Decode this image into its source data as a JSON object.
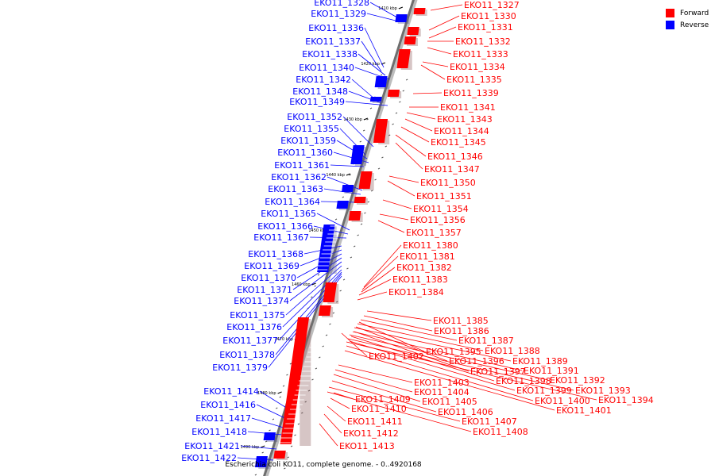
{
  "legend": {
    "forward": {
      "label": "Forward",
      "color": "#ff0000"
    },
    "reverse": {
      "label": "Reverse",
      "color": "#0000ff"
    }
  },
  "caption": "Escherichia coli KO11, complete genome. - 0..4920168",
  "ticks": [
    "1410 kbp",
    "1420 kbp",
    "1430 kbp",
    "1440 kbp",
    "1450 kbp",
    "1460 kbp",
    "1470 kbp",
    "1480 kbp",
    "1490 kbp"
  ],
  "reverse_genes": [
    "EKO11_1328",
    "EKO11_1329",
    "EKO11_1336",
    "EKO11_1337",
    "EKO11_1338",
    "EKO11_1340",
    "EKO11_1342",
    "EKO11_1348",
    "EKO11_1349",
    "EKO11_1352",
    "EKO11_1355",
    "EKO11_1359",
    "EKO11_1360",
    "EKO11_1361",
    "EKO11_1362",
    "EKO11_1363",
    "EKO11_1364",
    "EKO11_1365",
    "EKO11_1366",
    "EKO11_1367",
    "EKO11_1368",
    "EKO11_1369",
    "EKO11_1370",
    "EKO11_1371",
    "EKO11_1374",
    "EKO11_1375",
    "EKO11_1376",
    "EKO11_1377",
    "EKO11_1378",
    "EKO11_1379",
    "EKO11_1414",
    "EKO11_1416",
    "EKO11_1417",
    "EKO11_1418",
    "EKO11_1421",
    "EKO11_1422"
  ],
  "forward_genes": [
    "EKO11_1327",
    "EKO11_1330",
    "EKO11_1331",
    "EKO11_1332",
    "EKO11_1333",
    "EKO11_1334",
    "EKO11_1335",
    "EKO11_1339",
    "EKO11_1341",
    "EKO11_1343",
    "EKO11_1344",
    "EKO11_1345",
    "EKO11_1346",
    "EKO11_1347",
    "EKO11_1350",
    "EKO11_1351",
    "EKO11_1354",
    "EKO11_1356",
    "EKO11_1357",
    "EKO11_1380",
    "EKO11_1381",
    "EKO11_1382",
    "EKO11_1383",
    "EKO11_1384",
    "EKO11_1385",
    "EKO11_1386",
    "EKO11_1387",
    "EKO11_1388",
    "EKO11_1389",
    "EKO11_1391",
    "EKO11_1392",
    "EKO11_1393",
    "EKO11_1394",
    "EKO11_1395",
    "EKO11_1396",
    "EKO11_1397",
    "EKO11_1398",
    "EKO11_1399",
    "EKO11_1400",
    "EKO11_1401",
    "EKO11_1402",
    "EKO11_1403",
    "EKO11_1404",
    "EKO11_1405",
    "EKO11_1406",
    "EKO11_1407",
    "EKO11_1408",
    "EKO11_1409",
    "EKO11_1410",
    "EKO11_1411",
    "EKO11_1412",
    "EKO11_1413"
  ]
}
